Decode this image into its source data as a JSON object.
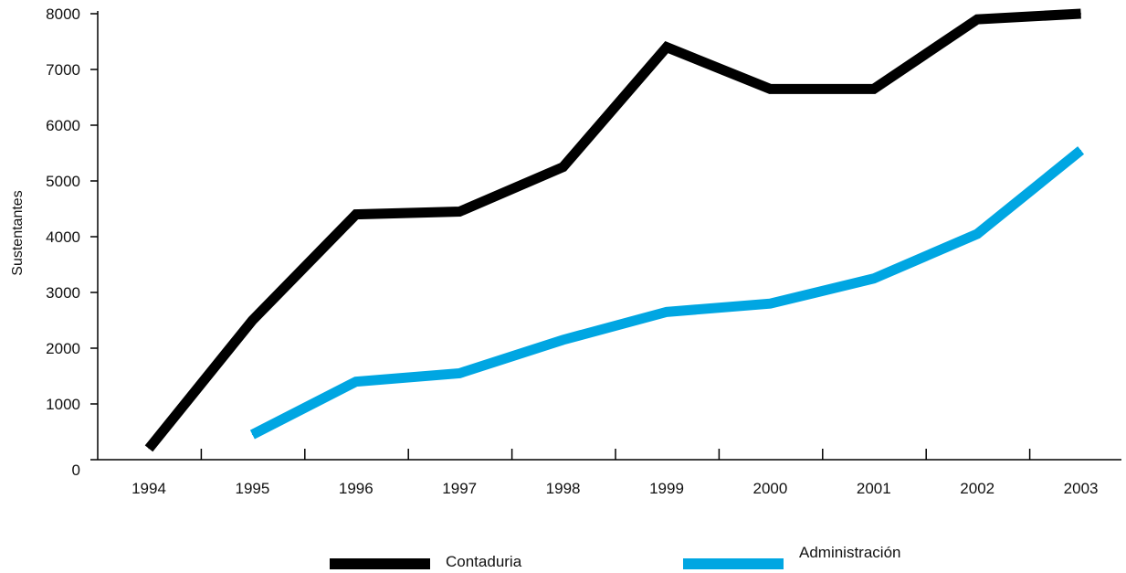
{
  "chart_data": {
    "type": "line",
    "title": "",
    "xlabel": "",
    "ylabel": "Sustentantes",
    "x": [
      "1994",
      "1995",
      "1996",
      "1997",
      "1998",
      "1999",
      "2000",
      "2001",
      "2002",
      "2003"
    ],
    "ylim": [
      0,
      8000
    ],
    "yticks": [
      "0",
      "1000",
      "2000",
      "3000",
      "4000",
      "5000",
      "6000",
      "7000",
      "8000"
    ],
    "grid": false,
    "legend_position": "bottom",
    "series": [
      {
        "name": "Contaduria",
        "color": "#000000",
        "values": [
          200,
          2500,
          4400,
          4450,
          5250,
          7400,
          6650,
          6650,
          7900,
          8000
        ]
      },
      {
        "name": "Administración",
        "color": "#00a6e2",
        "values": [
          null,
          450,
          1400,
          1550,
          2150,
          2650,
          2800,
          3250,
          4050,
          5550
        ]
      }
    ]
  }
}
